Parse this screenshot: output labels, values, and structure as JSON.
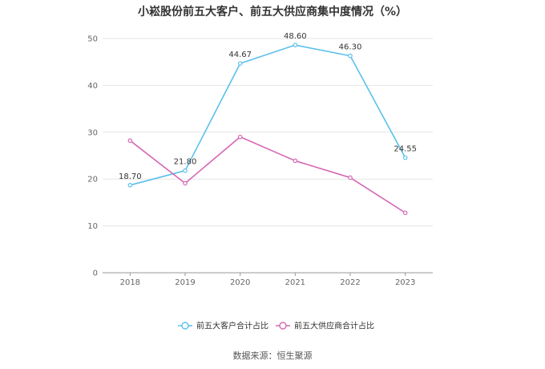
{
  "title": "小崧股份前五大客户、前五大供应商集中度情况（%）",
  "source": "数据来源：恒生聚源",
  "chart_data": {
    "type": "line",
    "title": "小崧股份前五大客户、前五大供应商集中度情况（%）",
    "x": [
      "2018",
      "2019",
      "2020",
      "2021",
      "2022",
      "2023"
    ],
    "ylim": [
      0,
      50
    ],
    "yticks": [
      0,
      10,
      20,
      30,
      40,
      50
    ],
    "grid": true,
    "legend_position": "bottom",
    "series": [
      {
        "name": "前五大客户合计占比",
        "color": "#5bc0eb",
        "values": [
          18.7,
          21.8,
          44.67,
          48.6,
          46.3,
          24.55
        ],
        "labels": [
          "18.70",
          "21.80",
          "44.67",
          "48.60",
          "46.30",
          "24.55"
        ]
      },
      {
        "name": "前五大供应商合计占比",
        "color": "#d568b5",
        "values": [
          28.2,
          19.1,
          29.0,
          23.9,
          20.3,
          12.8
        ]
      }
    ]
  }
}
